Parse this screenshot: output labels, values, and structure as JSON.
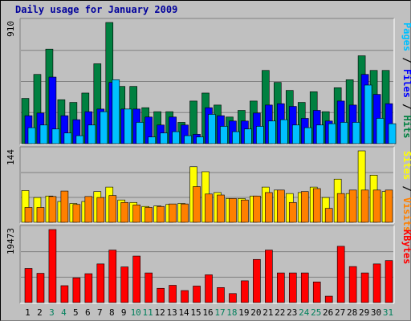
{
  "chart_data": {
    "type": "bar",
    "title": "Daily usage for January 2009",
    "categories": [
      "1",
      "2",
      "3",
      "4",
      "5",
      "6",
      "7",
      "8",
      "9",
      "10",
      "11",
      "12",
      "13",
      "14",
      "15",
      "16",
      "17",
      "18",
      "19",
      "20",
      "21",
      "22",
      "23",
      "24",
      "25",
      "26",
      "27",
      "28",
      "29",
      "30",
      "31"
    ],
    "weekend_days": [
      "3",
      "4",
      "10",
      "11",
      "17",
      "18",
      "24",
      "25",
      "31"
    ],
    "panels": [
      {
        "id": "hits",
        "ymax_label": "910",
        "ylim": [
          0,
          910
        ],
        "legend": [
          {
            "label": "Pages",
            "color": "#00c0ff"
          },
          {
            "label": "Files",
            "color": "#0000ff"
          },
          {
            "label": "Hits",
            "color": "#008040"
          }
        ],
        "separator": " / ",
        "series": [
          {
            "name": "Hits",
            "values": [
              340,
              520,
              710,
              330,
              310,
              380,
              600,
              910,
              430,
              430,
              270,
              240,
              240,
              160,
              320,
              380,
              290,
              200,
              250,
              320,
              550,
              460,
              400,
              310,
              390,
              240,
              420,
              480,
              660,
              550,
              550
            ]
          },
          {
            "name": "Files",
            "values": [
              210,
              230,
              500,
              210,
              180,
              240,
              260,
              460,
              260,
              260,
              200,
              140,
              200,
              140,
              70,
              270,
              210,
              170,
              170,
              230,
              290,
              300,
              280,
              190,
              250,
              170,
              320,
              290,
              520,
              370,
              300
            ]
          },
          {
            "name": "Pages",
            "values": [
              120,
              140,
              110,
              80,
              60,
              140,
              240,
              480,
              260,
              160,
              50,
              80,
              90,
              60,
              50,
              220,
              130,
              90,
              110,
              130,
              170,
              180,
              140,
              120,
              140,
              150,
              160,
              160,
              440,
              190,
              150
            ]
          }
        ]
      },
      {
        "id": "visits",
        "ymax_label": "144",
        "ylim": [
          0,
          144
        ],
        "legend": [
          {
            "label": "Sites",
            "color": "#ffff00"
          },
          {
            "label": "Visits",
            "color": "#ff8000"
          }
        ],
        "separator": " / ",
        "series": [
          {
            "name": "Sites",
            "values": [
              64,
              50,
              53,
              42,
              38,
              42,
              62,
              71,
              45,
              40,
              32,
              33,
              36,
              38,
              112,
              102,
              60,
              48,
              48,
              53,
              71,
              65,
              58,
              60,
              71,
              50,
              87,
              58,
              144,
              95,
              62
            ]
          },
          {
            "name": "Visits",
            "values": [
              30,
              30,
              52,
              63,
              36,
              52,
              50,
              54,
              40,
              35,
              30,
              32,
              37,
              37,
              72,
              57,
              55,
              48,
              45,
              53,
              60,
              65,
              40,
              62,
              68,
              28,
              58,
              65,
              65,
              65,
              65
            ]
          }
        ]
      },
      {
        "id": "kbytes",
        "ymax_label": "19473",
        "ylim": [
          0,
          19473
        ],
        "legend": [
          {
            "label": "KBytes",
            "color": "#ff0000"
          }
        ],
        "separator": "",
        "series": [
          {
            "name": "KBytes",
            "values": [
              9100,
              7800,
              19473,
              4500,
              6600,
              7700,
              10300,
              14000,
              9500,
              12400,
              7900,
              3800,
              4600,
              3200,
              4400,
              7400,
              4000,
              2400,
              5800,
              11500,
              14000,
              7900,
              7900,
              7900,
              5500,
              1700,
              15000,
              9600,
              7900,
              10300,
              11200
            ]
          }
        ]
      }
    ]
  }
}
